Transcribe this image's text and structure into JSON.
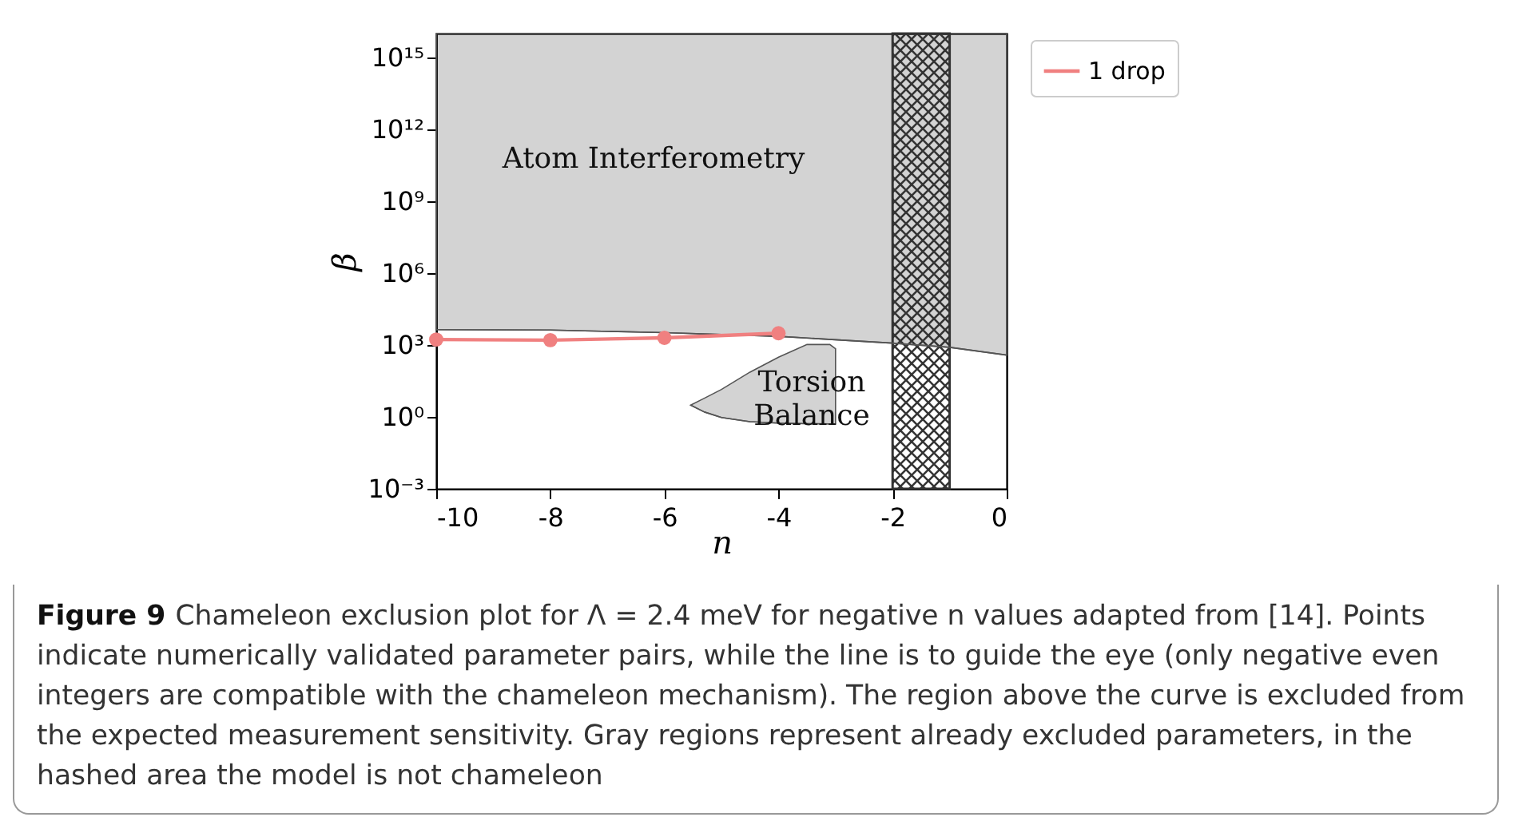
{
  "chart_data": {
    "type": "line",
    "xlabel": "n",
    "ylabel": "β",
    "xlim": [
      -10,
      0
    ],
    "xticks": [
      -10,
      -8,
      -6,
      -4,
      -2,
      0
    ],
    "ylim": [
      0.001,
      1e+16
    ],
    "log": "y",
    "yticks": [
      {
        "value": 0.001,
        "label": "10⁻³"
      },
      {
        "value": 1,
        "label": "10⁰"
      },
      {
        "value": 1000,
        "label": "10³"
      },
      {
        "value": 1000000,
        "label": "10⁶"
      },
      {
        "value": 1000000000,
        "label": "10⁹"
      },
      {
        "value": 1000000000000,
        "label": "10¹²"
      },
      {
        "value": 1000000000000000,
        "label": "10¹⁵"
      }
    ],
    "series": [
      {
        "color": "#555555",
        "marker": "none",
        "x": [
          -10,
          -8,
          -6,
          -4,
          -2,
          -1,
          0
        ],
        "values": [
          4400,
          4200,
          3300,
          2300,
          1200,
          800,
          380
        ],
        "lower": [
          4400,
          4200,
          3300,
          2300,
          1200,
          800,
          380
        ],
        "upper": [
          1e+16,
          1e+16,
          1e+16,
          1e+16,
          1e+16,
          1e+16,
          1e+16
        ]
      },
      {
        "color": "#555555",
        "marker": "none",
        "x": [
          -5.54,
          -5.3,
          -5,
          -4.5,
          -4,
          -3.5,
          -3.1,
          -3.0
        ],
        "values": [
          3.1,
          1.6,
          0.95,
          0.63,
          0.55,
          0.52,
          0.51,
          0.51
        ],
        "lower": [
          3.1,
          1.6,
          0.95,
          0.63,
          0.55,
          0.52,
          0.51,
          0.51
        ],
        "upper": [
          3.1,
          6,
          14,
          74,
          310,
          1050,
          1050,
          700
        ]
      },
      {
        "name": "1 drop",
        "color": "#f08080",
        "x": [
          -10,
          -8,
          -6,
          -4
        ],
        "values": [
          1700,
          1600,
          2000,
          3100
        ]
      }
    ],
    "bands": [
      {
        "axis": "x",
        "from": -2,
        "to": -1,
        "color": "#333333"
      }
    ],
    "marker": "circle",
    "legend": "top right",
    "grid": false,
    "annotations": [
      "Atom Interferometry",
      "Torsion Balance",
      "Figure 9",
      "Chameleon exclusion plot for Λ = 2.4 meV for negative n values adapted from [14]. Points indicate numerically validated parameter pairs, while the line is to guide the eye (only negative even integers are compatible with the chameleon mechanism). The region above the curve is excluded from the expected measurement sensitivity. Gray regions represent already excluded parameters, in the hashed area the model is not chameleon"
    ]
  }
}
